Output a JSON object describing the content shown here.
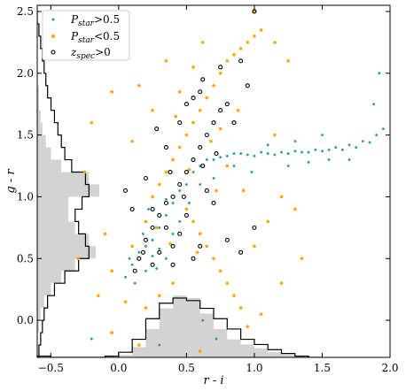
{
  "chart_data": {
    "type": "scatter",
    "xlabel": "r - i",
    "ylabel": "g - r",
    "xlim": [
      -0.6,
      2.0
    ],
    "ylim": [
      -0.3,
      2.55
    ],
    "xticks": [
      -0.5,
      0.0,
      0.5,
      1.0,
      1.5,
      2.0
    ],
    "xtick_labels": [
      "−0.5",
      "0.0",
      "0.5",
      "1.0",
      "1.5",
      "2.0"
    ],
    "yticks": [
      0.0,
      0.5,
      1.0,
      1.5,
      2.0,
      2.5
    ],
    "ytick_labels": [
      "0.0",
      "0.5",
      "1.0",
      "1.5",
      "2.0",
      "2.5"
    ],
    "grid": false,
    "legend_position": "top-left",
    "legend": [
      {
        "label": "P",
        "sub": "star",
        "suffix": ">0.5",
        "marker": "dot",
        "color": "#1b9e98"
      },
      {
        "label": "P",
        "sub": "star",
        "suffix": "<0.5",
        "marker": "dot",
        "color": "#ffa500"
      },
      {
        "label": "z",
        "sub": "spec",
        "suffix": ">0",
        "marker": "ring",
        "color": "#000000"
      }
    ],
    "series": [
      {
        "marker": "dot",
        "color": "#1b9e98",
        "points": [
          [
            0.05,
            0.35
          ],
          [
            0.1,
            0.45
          ],
          [
            0.15,
            0.55
          ],
          [
            0.2,
            0.6
          ],
          [
            0.25,
            0.65
          ],
          [
            0.3,
            0.75
          ],
          [
            0.35,
            0.85
          ],
          [
            0.4,
            0.95
          ],
          [
            0.45,
            1.05
          ],
          [
            0.5,
            1.1
          ],
          [
            0.55,
            1.2
          ],
          [
            0.6,
            1.25
          ],
          [
            0.65,
            1.3
          ],
          [
            0.7,
            1.3
          ],
          [
            0.75,
            1.32
          ],
          [
            0.8,
            1.33
          ],
          [
            0.85,
            1.35
          ],
          [
            0.9,
            1.35
          ],
          [
            0.95,
            1.34
          ],
          [
            1.0,
            1.33
          ],
          [
            1.05,
            1.36
          ],
          [
            1.1,
            1.35
          ],
          [
            1.15,
            1.34
          ],
          [
            1.2,
            1.36
          ],
          [
            1.25,
            1.35
          ],
          [
            1.3,
            1.37
          ],
          [
            1.35,
            1.36
          ],
          [
            1.4,
            1.36
          ],
          [
            1.45,
            1.38
          ],
          [
            1.5,
            1.37
          ],
          [
            1.55,
            1.38
          ],
          [
            1.6,
            1.4
          ],
          [
            1.65,
            1.38
          ],
          [
            1.7,
            1.42
          ],
          [
            1.75,
            1.4
          ],
          [
            1.8,
            1.45
          ],
          [
            1.85,
            1.44
          ],
          [
            1.9,
            1.5
          ],
          [
            1.95,
            1.55
          ],
          [
            1.92,
            2.0
          ],
          [
            1.88,
            1.75
          ],
          [
            0.2,
            0.4
          ],
          [
            0.12,
            0.3
          ],
          [
            0.08,
            0.5
          ],
          [
            0.25,
            0.52
          ],
          [
            0.3,
            0.58
          ],
          [
            0.18,
            0.7
          ],
          [
            0.22,
            0.9
          ],
          [
            0.35,
            0.5
          ],
          [
            0.28,
            0.42
          ],
          [
            0.4,
            0.7
          ],
          [
            0.45,
            0.8
          ],
          [
            0.6,
            1.1
          ],
          [
            0.7,
            1.15
          ],
          [
            0.98,
            1.2
          ],
          [
            1.25,
            1.25
          ],
          [
            1.55,
            1.3
          ],
          [
            1.7,
            1.3
          ],
          [
            1.5,
            1.5
          ],
          [
            1.3,
            1.45
          ],
          [
            -0.2,
            -0.15
          ],
          [
            -0.05,
            -0.1
          ],
          [
            0.3,
            -0.2
          ],
          [
            0.62,
            0.0
          ],
          [
            0.72,
            -0.15
          ],
          [
            0.35,
            0.98
          ],
          [
            0.52,
            0.95
          ],
          [
            0.85,
            1.25
          ],
          [
            1.1,
            1.42
          ],
          [
            1.4,
            1.28
          ]
        ]
      },
      {
        "marker": "dot",
        "color": "#ffa500",
        "points": [
          [
            0.1,
            0.6
          ],
          [
            0.2,
            0.8
          ],
          [
            0.25,
            1.0
          ],
          [
            0.3,
            1.1
          ],
          [
            0.35,
            1.2
          ],
          [
            0.4,
            1.3
          ],
          [
            0.45,
            1.4
          ],
          [
            0.5,
            1.5
          ],
          [
            0.55,
            1.6
          ],
          [
            0.6,
            1.7
          ],
          [
            0.65,
            1.8
          ],
          [
            0.7,
            1.9
          ],
          [
            0.75,
            2.0
          ],
          [
            0.8,
            2.1
          ],
          [
            0.85,
            2.15
          ],
          [
            0.9,
            2.2
          ],
          [
            0.95,
            2.25
          ],
          [
            1.0,
            2.3
          ],
          [
            1.05,
            2.35
          ],
          [
            0.5,
            0.9
          ],
          [
            0.55,
            0.8
          ],
          [
            0.6,
            0.7
          ],
          [
            0.65,
            0.6
          ],
          [
            0.7,
            0.5
          ],
          [
            0.75,
            0.4
          ],
          [
            0.8,
            0.3
          ],
          [
            0.85,
            0.2
          ],
          [
            0.9,
            0.1
          ],
          [
            1.0,
            0.6
          ],
          [
            1.1,
            0.8
          ],
          [
            1.2,
            1.0
          ],
          [
            1.3,
            0.9
          ],
          [
            -0.05,
            0.4
          ],
          [
            -0.1,
            0.7
          ],
          [
            -0.15,
            0.2
          ],
          [
            -0.3,
            0.5
          ],
          [
            -0.25,
            1.2
          ],
          [
            -0.2,
            1.6
          ],
          [
            -0.05,
            1.85
          ],
          [
            0.1,
            1.45
          ],
          [
            0.15,
            1.9
          ],
          [
            0.25,
            1.7
          ],
          [
            0.35,
            2.1
          ],
          [
            0.45,
            1.85
          ],
          [
            0.55,
            2.05
          ],
          [
            0.62,
            2.25
          ],
          [
            0.75,
            1.55
          ],
          [
            0.88,
            1.7
          ],
          [
            1.15,
            1.5
          ],
          [
            1.2,
            0.3
          ],
          [
            1.35,
            0.5
          ],
          [
            0.95,
            -0.05
          ],
          [
            1.05,
            0.05
          ],
          [
            0.4,
            0.3
          ],
          [
            0.3,
            0.2
          ],
          [
            0.2,
            0.1
          ],
          [
            0.05,
            0.15
          ],
          [
            -0.05,
            -0.1
          ],
          [
            0.15,
            -0.2
          ],
          [
            0.6,
            -0.25
          ],
          [
            1.0,
            2.5
          ],
          [
            1.15,
            2.25
          ],
          [
            1.25,
            2.1
          ],
          [
            0.42,
            1.65
          ],
          [
            0.68,
            1.45
          ],
          [
            0.8,
            1.25
          ],
          [
            0.92,
            1.05
          ],
          [
            0.38,
            0.62
          ],
          [
            0.28,
            0.75
          ],
          [
            0.52,
            1.22
          ],
          [
            0.72,
            1.05
          ],
          [
            0.58,
            0.55
          ]
        ]
      },
      {
        "marker": "ring",
        "color": "#000000",
        "points": [
          [
            0.15,
            0.5
          ],
          [
            0.2,
            0.65
          ],
          [
            0.25,
            0.75
          ],
          [
            0.3,
            0.85
          ],
          [
            0.35,
            0.95
          ],
          [
            0.4,
            1.0
          ],
          [
            0.45,
            1.1
          ],
          [
            0.5,
            1.2
          ],
          [
            0.55,
            1.3
          ],
          [
            0.6,
            1.4
          ],
          [
            0.65,
            1.5
          ],
          [
            0.7,
            1.6
          ],
          [
            0.75,
            1.7
          ],
          [
            0.8,
            1.75
          ],
          [
            0.5,
            1.75
          ],
          [
            0.55,
            1.8
          ],
          [
            0.6,
            1.85
          ],
          [
            0.4,
            0.6
          ],
          [
            0.3,
            0.55
          ],
          [
            0.45,
            0.7
          ],
          [
            0.35,
            0.75
          ],
          [
            0.25,
            0.9
          ],
          [
            0.5,
            0.85
          ],
          [
            0.65,
            1.05
          ],
          [
            0.7,
            0.95
          ],
          [
            0.6,
            0.6
          ],
          [
            0.8,
            0.65
          ],
          [
            0.9,
            0.55
          ],
          [
            1.0,
            0.75
          ],
          [
            0.85,
            1.6
          ],
          [
            0.95,
            1.9
          ],
          [
            0.9,
            2.1
          ],
          [
            1.0,
            2.5
          ],
          [
            0.05,
            1.05
          ],
          [
            0.1,
            0.9
          ],
          [
            0.2,
            1.15
          ],
          [
            0.35,
            1.4
          ],
          [
            0.28,
            1.55
          ],
          [
            0.45,
            1.6
          ],
          [
            0.62,
            1.95
          ],
          [
            0.75,
            2.05
          ],
          [
            0.25,
            0.45
          ],
          [
            0.12,
            0.4
          ],
          [
            0.18,
            0.55
          ],
          [
            0.4,
            0.45
          ],
          [
            0.55,
            0.5
          ],
          [
            0.48,
            1.0
          ],
          [
            0.38,
            1.2
          ],
          [
            0.62,
            1.25
          ],
          [
            0.72,
            1.35
          ]
        ]
      }
    ],
    "histograms": [
      {
        "name": "x-marginal",
        "axis": "x",
        "fill": "#d3d3d3",
        "bins": [
          -0.6,
          -0.5,
          -0.4,
          -0.3,
          -0.2,
          -0.1,
          0.0,
          0.1,
          0.2,
          0.3,
          0.4,
          0.5,
          0.6,
          0.7,
          0.8,
          0.9,
          1.0,
          1.1,
          1.2,
          1.3,
          1.4,
          1.5
        ],
        "filled_counts": [
          0,
          0,
          0,
          0,
          0,
          0,
          2,
          8,
          22,
          38,
          48,
          46,
          34,
          22,
          14,
          10,
          7,
          4,
          2,
          1,
          0
        ],
        "outline_counts": [
          1,
          0,
          0,
          0,
          0,
          1,
          4,
          14,
          30,
          42,
          46,
          44,
          38,
          30,
          22,
          14,
          10,
          6,
          3,
          1,
          0
        ]
      },
      {
        "name": "y-marginal",
        "axis": "y",
        "fill": "#d3d3d3",
        "bins": [
          -0.3,
          -0.2,
          -0.1,
          0.0,
          0.1,
          0.2,
          0.3,
          0.4,
          0.5,
          0.6,
          0.7,
          0.8,
          0.9,
          1.0,
          1.1,
          1.2,
          1.3,
          1.4,
          1.5,
          1.6,
          1.7,
          1.8,
          1.9,
          2.0,
          2.1,
          2.2,
          2.3,
          2.4,
          2.5
        ],
        "filled_counts": [
          0,
          0,
          1,
          2,
          4,
          8,
          14,
          22,
          34,
          30,
          22,
          18,
          18,
          36,
          30,
          14,
          8,
          5,
          3,
          2,
          1,
          1,
          0,
          0,
          0,
          0,
          0,
          0
        ],
        "outline_counts": [
          1,
          2,
          3,
          4,
          6,
          10,
          16,
          24,
          30,
          28,
          24,
          22,
          26,
          30,
          28,
          20,
          16,
          14,
          12,
          10,
          8,
          6,
          5,
          4,
          3,
          2,
          1,
          0
        ]
      }
    ]
  }
}
